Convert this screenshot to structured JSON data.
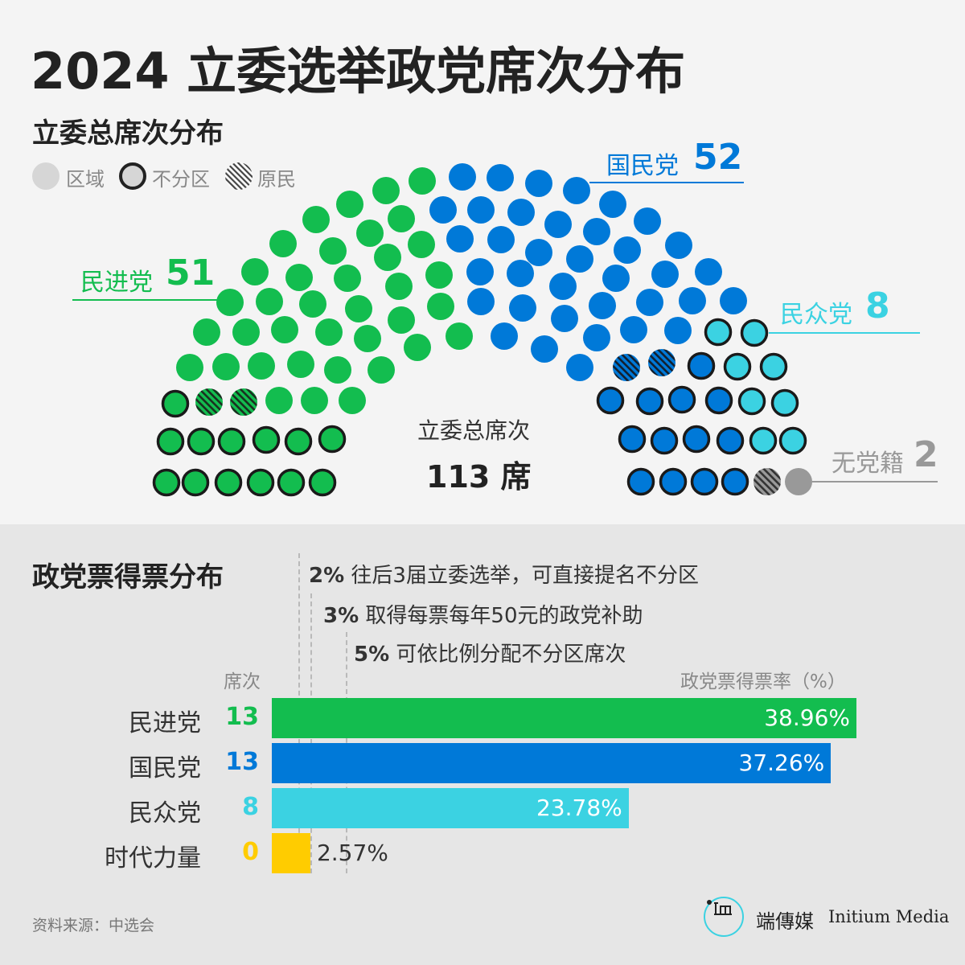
{
  "title": "2024 立委选举政党席次分布",
  "section1_title": "立委总席次分布",
  "legend": [
    {
      "label": "区域",
      "style": "region"
    },
    {
      "label": "不分区",
      "style": "at_large"
    },
    {
      "label": "原民",
      "style": "indigenous"
    }
  ],
  "parties": {
    "dpp": {
      "name": "民进党",
      "seats": "51",
      "color": "#13bd4f"
    },
    "kmt": {
      "name": "国民党",
      "seats": "52",
      "color": "#0079d8"
    },
    "tpp": {
      "name": "民众党",
      "seats": "8",
      "color": "#3bd2e2"
    },
    "ind": {
      "name": "无党籍",
      "seats": "2",
      "color": "#999999"
    }
  },
  "center": {
    "label": "立委总席次",
    "total": "113 席"
  },
  "section2_title": "政党票得票分布",
  "thresholds": [
    {
      "pct": "2%",
      "text": "往后3届立委选举，可直接提名不分区"
    },
    {
      "pct": "3%",
      "text": "取得每票每年50元的政党补助"
    },
    {
      "pct": "5%",
      "text": "可依比例分配不分区席次"
    }
  ],
  "axis": {
    "seats_label": "席次",
    "rate_label": "政党票得票率（%）"
  },
  "chart_data": {
    "type": "bar",
    "orientation": "horizontal",
    "title": "政党票得票分布",
    "ylabel": "席次",
    "xlabel": "政党票得票率（%）",
    "categories": [
      "民进党",
      "国民党",
      "民众党",
      "时代力量"
    ],
    "values": [
      38.96,
      37.26,
      23.78,
      2.57
    ],
    "value_labels": [
      "38.96%",
      "37.26%",
      "23.78%",
      "2.57%"
    ],
    "seats": [
      "13",
      "13",
      "8",
      "0"
    ],
    "colors": [
      "#13bd4f",
      "#0079d8",
      "#3bd2e2",
      "#ffcc00"
    ],
    "xlim": [
      0,
      40
    ],
    "threshold_lines": [
      2,
      3,
      5
    ]
  },
  "source": "资料来源：中选会",
  "brand": {
    "cn": "端傳媒",
    "en": "Initium Media"
  }
}
